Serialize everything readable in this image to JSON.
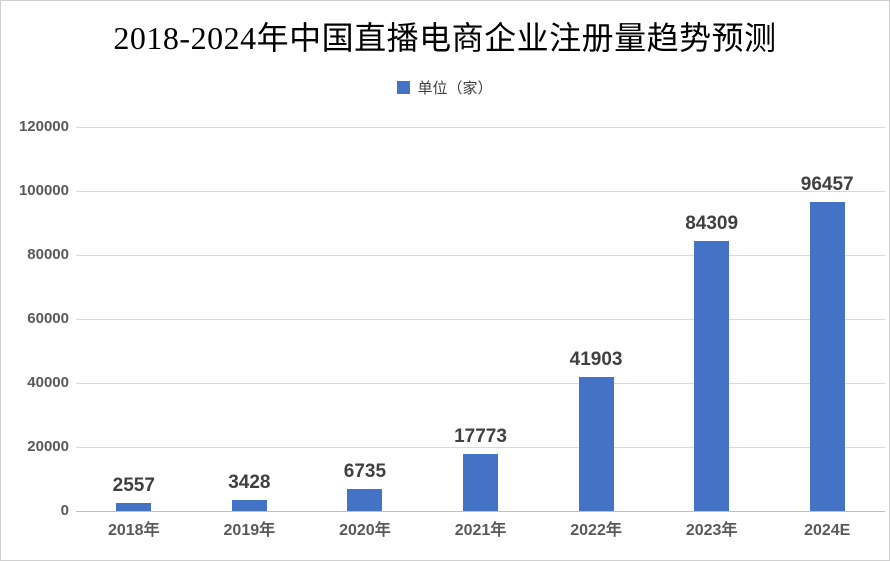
{
  "title": "2018-2024年中国直播电商企业注册量趋势预测",
  "legend": {
    "label": "单位（家）",
    "marker_color": "#4472C4"
  },
  "chart_data": {
    "type": "bar",
    "title": "2018-2024年中国直播电商企业注册量趋势预测",
    "legend_entries": [
      "单位（家）"
    ],
    "legend_position": "top",
    "categories": [
      "2018年",
      "2019年",
      "2020年",
      "2021年",
      "2022年",
      "2023年",
      "2024E"
    ],
    "values": [
      2557,
      3428,
      6735,
      17773,
      41903,
      84309,
      96457
    ],
    "data_labels_shown": true,
    "xlabel": "",
    "ylabel": "",
    "ylim": [
      0,
      120000
    ],
    "yticks": [
      0,
      20000,
      40000,
      60000,
      80000,
      100000,
      120000
    ],
    "grid": true,
    "bar_color": "#4472C4",
    "gridline_color": "#D9D9D9",
    "axis_line_color": "#BFBFBF",
    "value_label_color": "#404040",
    "tick_label_color": "#595959",
    "title_color": "#000000"
  }
}
